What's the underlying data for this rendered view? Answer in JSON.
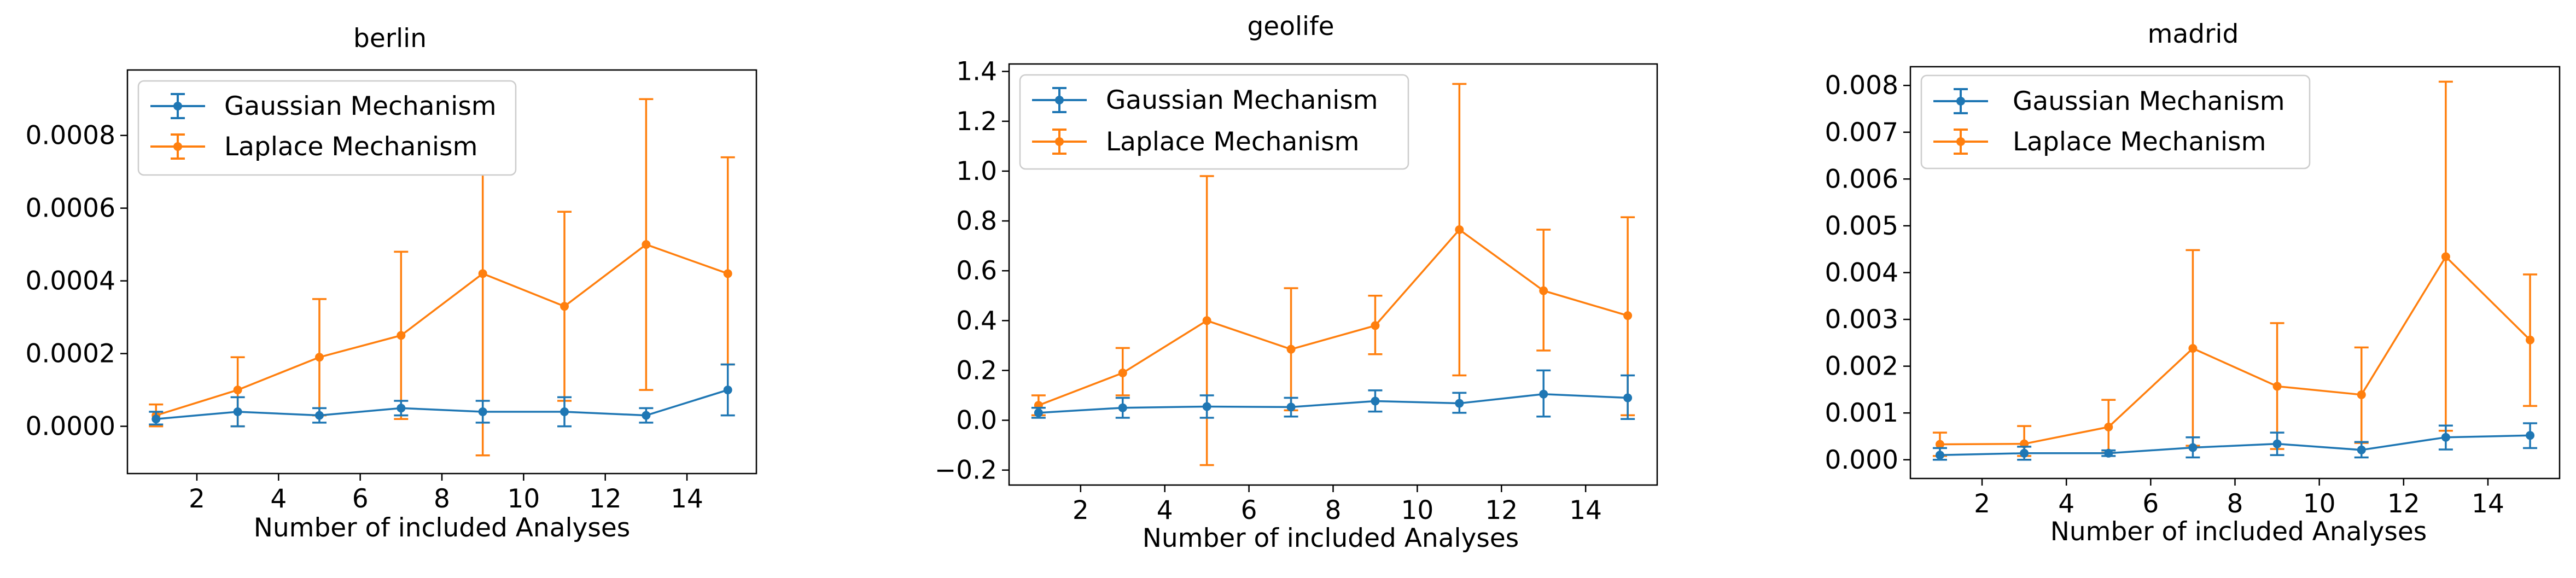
{
  "colors": {
    "gaussian": "#1f77b4",
    "laplace": "#ff7f0e"
  },
  "legend": {
    "placement": "upper-left",
    "entries": [
      "Gaussian Mechanism",
      "Laplace Mechanism"
    ]
  },
  "chart_data": [
    {
      "type": "line",
      "title": "berlin",
      "xlabel": "Number of included Analyses",
      "ylabel": "",
      "xlim": [
        0.3,
        15.7
      ],
      "ylim": [
        -0.00013,
        0.00098
      ],
      "xticks": [
        2,
        4,
        6,
        8,
        10,
        12,
        14
      ],
      "xtick_labels": [
        "2",
        "4",
        "6",
        "8",
        "10",
        "12",
        "14"
      ],
      "yticks": [
        0,
        0.0002,
        0.0004,
        0.0006,
        0.0008
      ],
      "ytick_labels": [
        "0.0000",
        "0.0002",
        "0.0004",
        "0.0006",
        "0.0008"
      ],
      "grid": false,
      "legend_placement": "upper-left",
      "x": [
        1,
        3,
        5,
        7,
        9,
        11,
        13,
        15
      ],
      "series": [
        {
          "name": "Gaussian Mechanism",
          "color": "#1f77b4",
          "values": [
            2e-05,
            4e-05,
            3e-05,
            5e-05,
            4e-05,
            4e-05,
            3e-05,
            0.0001
          ],
          "err_low": [
            5e-06,
            0.0,
            1e-05,
            3e-05,
            1e-05,
            0.0,
            1e-05,
            3e-05
          ],
          "err_high": [
            4e-05,
            8e-05,
            5e-05,
            7e-05,
            7e-05,
            8e-05,
            5e-05,
            0.00017
          ]
        },
        {
          "name": "Laplace Mechanism",
          "color": "#ff7f0e",
          "values": [
            3e-05,
            0.0001,
            0.00019,
            0.00025,
            0.00042,
            0.00033,
            0.0005,
            0.00042
          ],
          "err_low": [
            0.0,
            0.0,
            3e-05,
            2e-05,
            -8e-05,
            7e-05,
            0.0001,
            0.00017
          ],
          "err_high": [
            6e-05,
            0.00019,
            0.00035,
            0.00048,
            0.00093,
            0.00059,
            0.0009,
            0.00074
          ]
        }
      ]
    },
    {
      "type": "line",
      "title": "geolife",
      "xlabel": "Number of included Analyses",
      "ylabel": "",
      "xlim": [
        0.3,
        15.7
      ],
      "ylim": [
        -0.26,
        1.43
      ],
      "xticks": [
        2,
        4,
        6,
        8,
        10,
        12,
        14
      ],
      "xtick_labels": [
        "2",
        "4",
        "6",
        "8",
        "10",
        "12",
        "14"
      ],
      "yticks": [
        -0.2,
        0.0,
        0.2,
        0.4,
        0.6,
        0.8,
        1.0,
        1.2,
        1.4
      ],
      "ytick_labels": [
        "−0.2",
        "0.0",
        "0.2",
        "0.4",
        "0.6",
        "0.8",
        "1.0",
        "1.2",
        "1.4"
      ],
      "grid": false,
      "legend_placement": "upper-left",
      "x": [
        1,
        3,
        5,
        7,
        9,
        11,
        13,
        15
      ],
      "series": [
        {
          "name": "Gaussian Mechanism",
          "color": "#1f77b4",
          "values": [
            0.03,
            0.05,
            0.055,
            0.053,
            0.077,
            0.068,
            0.105,
            0.09
          ],
          "err_low": [
            0.01,
            0.01,
            0.01,
            0.015,
            0.035,
            0.03,
            0.015,
            0.005
          ],
          "err_high": [
            0.05,
            0.09,
            0.1,
            0.09,
            0.12,
            0.11,
            0.2,
            0.18
          ]
        },
        {
          "name": "Laplace Mechanism",
          "color": "#ff7f0e",
          "values": [
            0.06,
            0.19,
            0.4,
            0.285,
            0.38,
            0.765,
            0.52,
            0.42
          ],
          "err_low": [
            0.02,
            0.1,
            -0.18,
            0.04,
            0.265,
            0.18,
            0.28,
            0.02
          ],
          "err_high": [
            0.1,
            0.29,
            0.98,
            0.53,
            0.5,
            1.35,
            0.765,
            0.815
          ]
        }
      ]
    },
    {
      "type": "line",
      "title": "madrid",
      "xlabel": "Number of included Analyses",
      "ylabel": "",
      "xlim": [
        0.3,
        15.7
      ],
      "ylim": [
        -0.0004,
        0.0084
      ],
      "xticks": [
        2,
        4,
        6,
        8,
        10,
        12,
        14
      ],
      "xtick_labels": [
        "2",
        "4",
        "6",
        "8",
        "10",
        "12",
        "14"
      ],
      "yticks": [
        0.0,
        0.001,
        0.002,
        0.003,
        0.004,
        0.005,
        0.006,
        0.007,
        0.008
      ],
      "ytick_labels": [
        "0.000",
        "0.001",
        "0.002",
        "0.003",
        "0.004",
        "0.005",
        "0.006",
        "0.007",
        "0.008"
      ],
      "grid": false,
      "legend_placement": "upper-left",
      "x": [
        1,
        3,
        5,
        7,
        9,
        11,
        13,
        15
      ],
      "series": [
        {
          "name": "Gaussian Mechanism",
          "color": "#1f77b4",
          "values": [
            0.0001,
            0.00014,
            0.00014,
            0.00026,
            0.00034,
            0.00021,
            0.00048,
            0.00052
          ],
          "err_low": [
            0.0,
            0.0,
            8e-05,
            5e-05,
            0.0001,
            5e-05,
            0.00022,
            0.00025
          ],
          "err_high": [
            0.00025,
            0.00028,
            0.0002,
            0.00048,
            0.00058,
            0.00038,
            0.00073,
            0.00078
          ]
        },
        {
          "name": "Laplace Mechanism",
          "color": "#ff7f0e",
          "values": [
            0.00033,
            0.00034,
            0.0007,
            0.00238,
            0.00157,
            0.00139,
            0.00434,
            0.00256
          ],
          "err_low": [
            8e-05,
            8e-05,
            0.00015,
            0.0003,
            0.00023,
            0.00036,
            0.00062,
            0.00115
          ],
          "err_high": [
            0.00058,
            0.00072,
            0.00128,
            0.00448,
            0.00292,
            0.0024,
            0.00808,
            0.00396
          ]
        }
      ]
    }
  ]
}
